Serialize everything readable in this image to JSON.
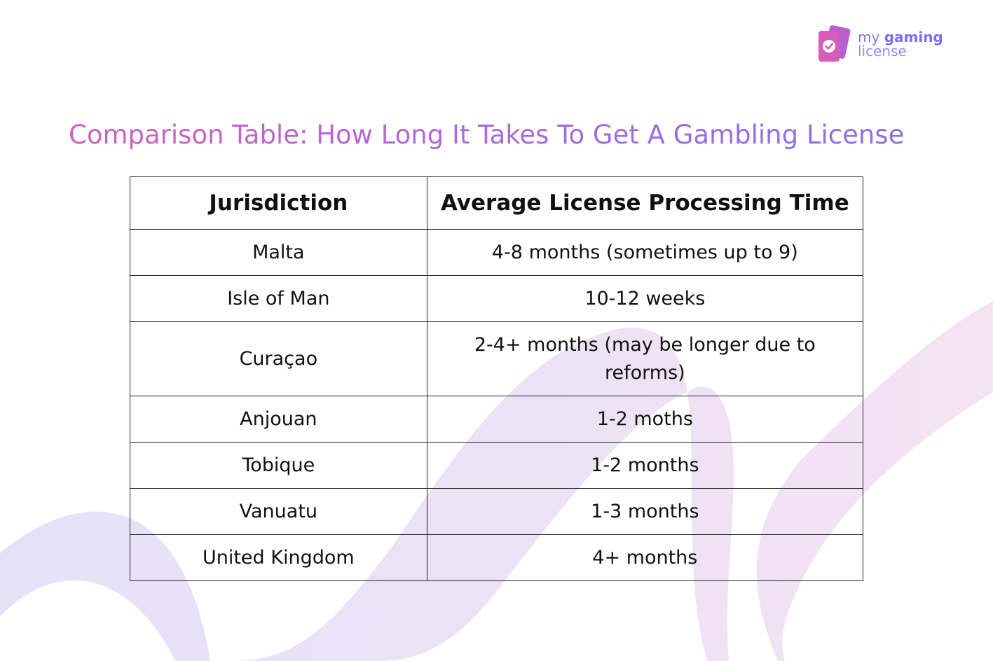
{
  "logo": {
    "word_my": "my",
    "word_gaming": "gaming",
    "word_license": "license",
    "icon": "check-card-icon"
  },
  "title": "Comparison Table: How Long It Takes To Get A Gambling License",
  "table": {
    "headers": [
      "Jurisdiction",
      "Average License Processing Time"
    ],
    "rows": [
      [
        "Malta",
        "4-8 months (sometimes up to 9)"
      ],
      [
        "Isle of Man",
        "10-12 weeks"
      ],
      [
        "Curaçao",
        "2-4+ months (may be longer due to reforms)"
      ],
      [
        "Anjouan",
        "1-2 moths"
      ],
      [
        "Tobique",
        "1-2 months"
      ],
      [
        "Vanuatu",
        "1-3 months"
      ],
      [
        "United Kingdom",
        "4+ months"
      ]
    ]
  },
  "colors": {
    "title_gradient_start": "#d760b8",
    "title_gradient_end": "#8072ec",
    "brand_purple": "#7c6cf0",
    "logo_pink": "#d85dbb"
  }
}
